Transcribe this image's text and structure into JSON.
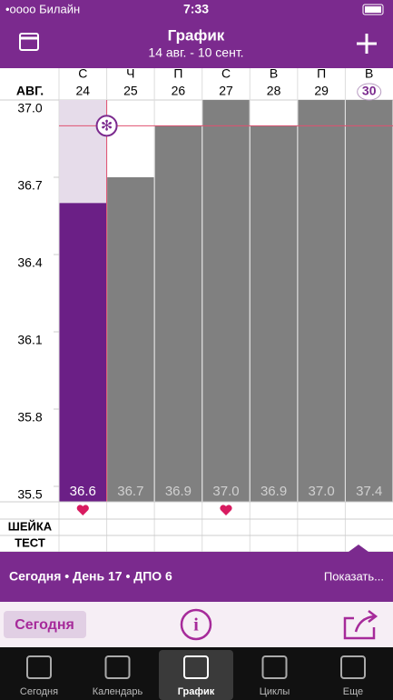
{
  "status_bar": {
    "carrier": "•oooo Билайн",
    "time": "7:33"
  },
  "header": {
    "title": "График",
    "subtitle": "14 авг. - 10 сент."
  },
  "chart": {
    "type": "bar",
    "month": "АВГ.",
    "weekdays": [
      "С",
      "Ч",
      "П",
      "С",
      "В",
      "П",
      "В"
    ],
    "categories": [
      "24",
      "25",
      "26",
      "27",
      "28",
      "29",
      "30"
    ],
    "values": [
      36.6,
      36.7,
      36.9,
      37.0,
      36.9,
      37.0,
      37.4
    ],
    "value_labels": [
      "36.6",
      "36.7",
      "36.9",
      "37.0",
      "36.9",
      "37.0",
      "37.4"
    ],
    "colors": [
      "#6b1f86",
      "#808080",
      "#808080",
      "#808080",
      "#808080",
      "#808080",
      "#808080"
    ],
    "coverline": 36.9,
    "ylim": [
      35.44,
      37.0
    ],
    "yticks": [
      {
        "value": 37.0,
        "label": "37.0"
      },
      36.7,
      36.4,
      36.1,
      35.8,
      {
        "value": 35.5,
        "label": "35.5"
      }
    ]
  },
  "rows": [
    "ШЕЙКА",
    "ТЕСТ"
  ],
  "info_bar": {
    "text": "Сегодня • День 17 • ДПО 6",
    "action": "Показать..."
  },
  "toolbar": {
    "today": "Сегодня"
  },
  "tabs": [
    "Сегодня",
    "Календарь",
    "График",
    "Циклы",
    "Еще"
  ]
}
